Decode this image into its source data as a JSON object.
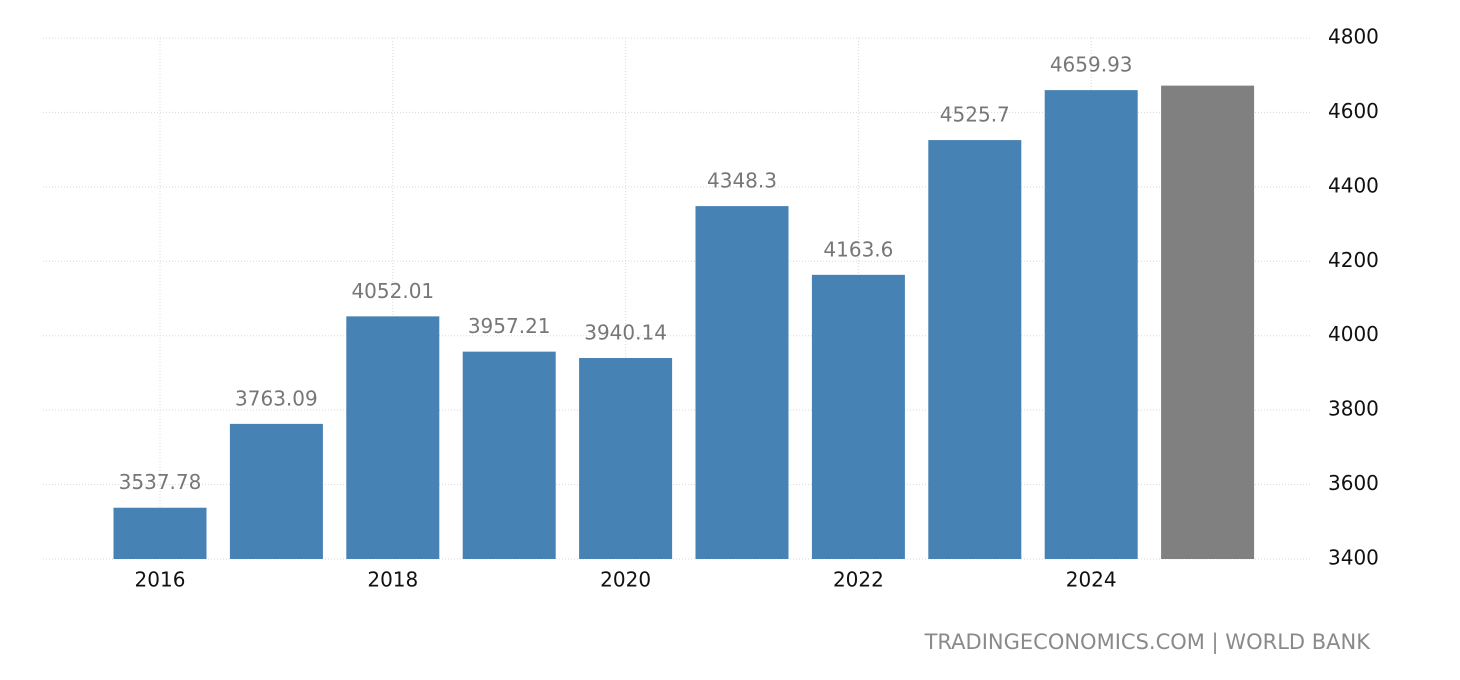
{
  "chart_data": {
    "type": "bar",
    "categories": [
      "2016",
      null,
      "2018",
      null,
      "2020",
      null,
      "2022",
      null,
      "2024",
      null
    ],
    "values": [
      3537.78,
      3763.09,
      4052.01,
      3957.21,
      3940.14,
      4348.3,
      4163.6,
      4525.7,
      4659.93,
      4672
    ],
    "value_labels": [
      "3537.78",
      "3763.09",
      "4052.01",
      "3957.21",
      "3940.14",
      "4348.3",
      "4163.6",
      "4525.7",
      "4659.93",
      null
    ],
    "colors": [
      "#4682b4",
      "#4682b4",
      "#4682b4",
      "#4682b4",
      "#4682b4",
      "#4682b4",
      "#4682b4",
      "#4682b4",
      "#4682b4",
      "#808080"
    ],
    "ylim": [
      3400,
      4800
    ],
    "yticks": [
      3400,
      3600,
      3800,
      4000,
      4200,
      4400,
      4600,
      4800
    ],
    "grid": true,
    "source": "TRADINGECONOMICS.COM | WORLD BANK"
  }
}
